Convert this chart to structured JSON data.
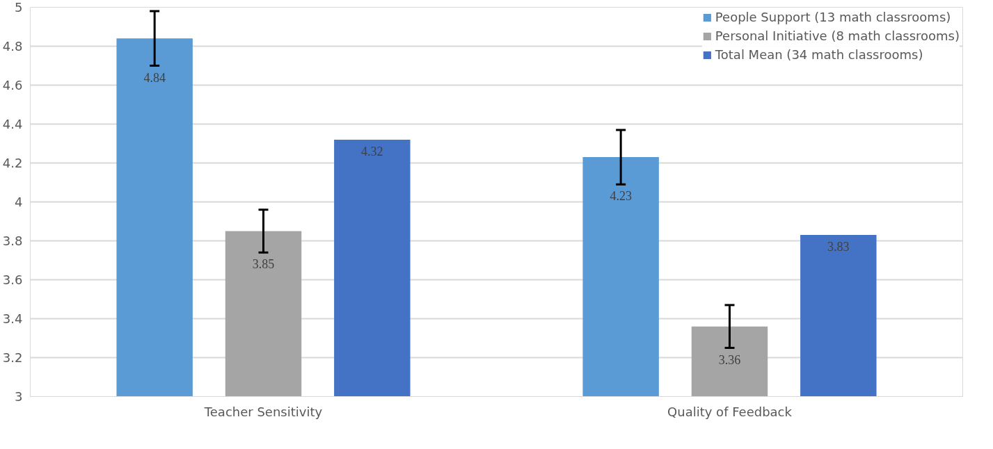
{
  "chart_data": {
    "type": "bar",
    "categories": [
      "Teacher Sensitivity",
      "Quality of Feedback"
    ],
    "series": [
      {
        "name": "People Support (13 math classrooms)",
        "color": "#5b9bd5",
        "values": [
          4.84,
          4.23
        ],
        "errors": [
          0.14,
          0.14
        ]
      },
      {
        "name": "Personal Initiative (8 math classrooms)",
        "color": "#a5a5a5",
        "values": [
          3.85,
          3.36
        ],
        "errors": [
          0.11,
          0.11
        ]
      },
      {
        "name": "Total Mean (34 math classrooms)",
        "color": "#4472c4",
        "values": [
          4.32,
          3.83
        ]
      }
    ],
    "ylim": [
      3,
      5
    ],
    "yticks": [
      3,
      3.2,
      3.4,
      3.6,
      3.8,
      4,
      4.2,
      4.4,
      4.6,
      4.8,
      5
    ],
    "grid": "y",
    "legend": "top right",
    "data_labels": true
  }
}
